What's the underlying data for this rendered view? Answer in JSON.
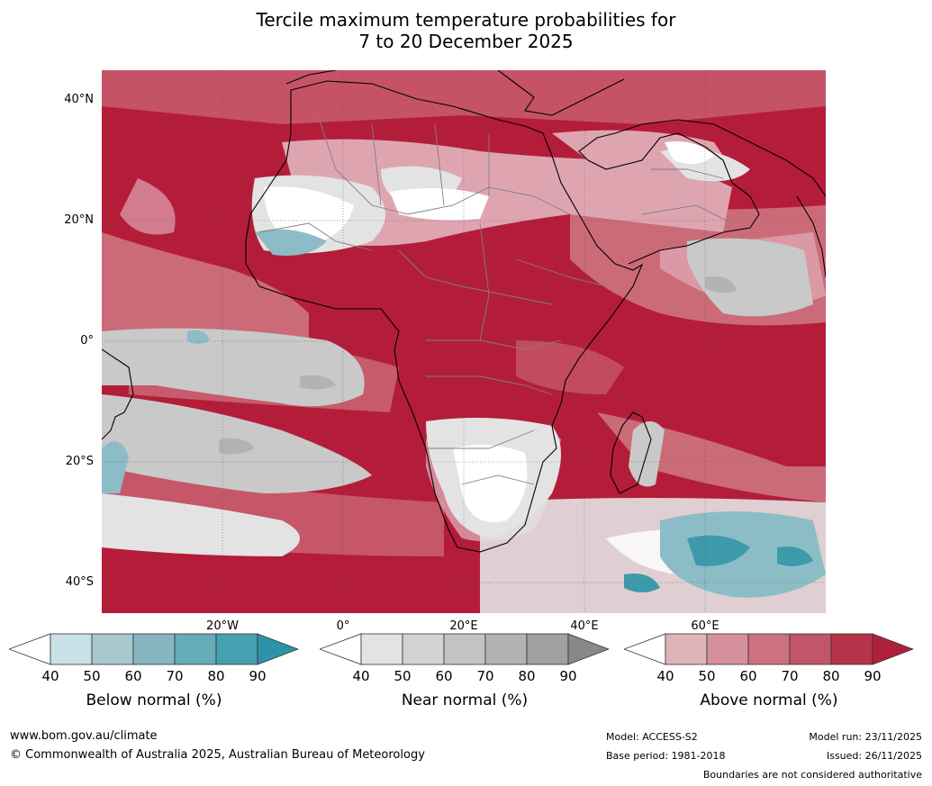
{
  "title_line1": "Tercile maximum temperature probabilities for",
  "title_line2": "7 to 20 December 2025",
  "map": {
    "lat_labels": [
      "40°N",
      "20°N",
      "0°",
      "20°S",
      "40°S"
    ],
    "lon_labels": [
      "20°W",
      "0°",
      "20°E",
      "40°E",
      "60°E"
    ],
    "colors": {
      "sea_above_dark": "#b41d3a",
      "above_mid": "#cc6b78",
      "above_light": "#dea5b0",
      "near": "#c9c9c9",
      "near_light": "#e3e3e3",
      "below": "#8cbdc6",
      "below_dark": "#3d9aab",
      "white": "#ffffff",
      "coast": "#000000",
      "border": "#808080"
    }
  },
  "colorbars": [
    {
      "title": "Below normal (%)",
      "ticks": [
        "40",
        "50",
        "60",
        "70",
        "80",
        "90"
      ],
      "colors": [
        "#ffffff",
        "#c9e0e6",
        "#a7c8cf",
        "#87b6c2",
        "#66abb8",
        "#45a0b0",
        "#2d93aa"
      ]
    },
    {
      "title": "Near normal (%)",
      "ticks": [
        "40",
        "50",
        "60",
        "70",
        "80",
        "90"
      ],
      "colors": [
        "#ffffff",
        "#e3e3e3",
        "#d3d3d3",
        "#c3c3c3",
        "#b3b3b3",
        "#a1a1a1",
        "#888888"
      ]
    },
    {
      "title": "Above normal (%)",
      "ticks": [
        "40",
        "50",
        "60",
        "70",
        "80",
        "90"
      ],
      "colors": [
        "#ffffff",
        "#e0b3bb",
        "#d5919b",
        "#cc717d",
        "#c05667",
        "#b6344a",
        "#b01f3c"
      ]
    }
  ],
  "footer": {
    "website": "www.bom.gov.au/climate",
    "copyright": "© Commonwealth of Australia 2025, Australian Bureau of Meteorology",
    "model": "Model: ACCESS-S2",
    "base_period": "Base period: 1981-2018",
    "model_run": "Model run: 23/11/2025",
    "issued": "Issued: 26/11/2025",
    "disclaimer": "Boundaries are not considered authoritative"
  }
}
